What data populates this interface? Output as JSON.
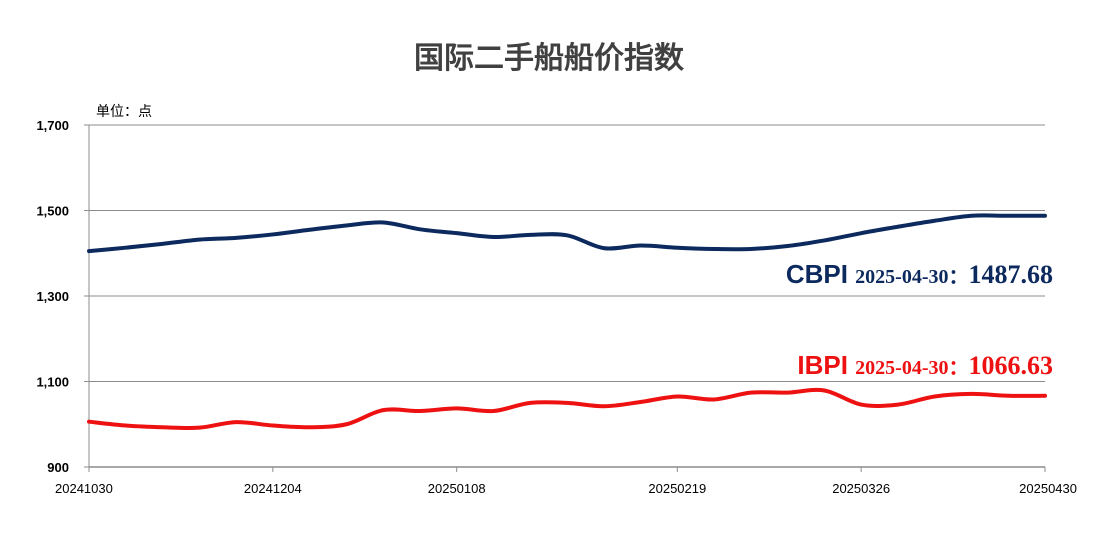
{
  "chart_data": {
    "type": "line",
    "title": "国际二手船船价指数",
    "unit_label": "单位：点",
    "ylim": [
      900,
      1700
    ],
    "yticks": [
      900,
      1100,
      1300,
      1500,
      1700
    ],
    "ytick_labels": [
      "900",
      "1,100",
      "1,300",
      "1,500",
      "1,700"
    ],
    "grid": true,
    "x": [
      "20241030",
      "20241106",
      "20241113",
      "20241120",
      "20241127",
      "20241204",
      "20241211",
      "20241218",
      "20241225",
      "20250101",
      "20250108",
      "20250115",
      "20250122",
      "20250129",
      "20250205",
      "20250212",
      "20250219",
      "20250226",
      "20250305",
      "20250312",
      "20250319",
      "20250326",
      "20250402",
      "20250409",
      "20250416",
      "20250423",
      "20250430"
    ],
    "x_tick_labels": [
      "20241030",
      "20241204",
      "20250108",
      "20250219",
      "20250326",
      "20250430"
    ],
    "series": [
      {
        "name": "CBPI",
        "color": "#0d2a5e",
        "values": [
          1405,
          1413,
          1422,
          1432,
          1436,
          1444,
          1455,
          1465,
          1472,
          1456,
          1447,
          1438,
          1443,
          1442,
          1412,
          1418,
          1413,
          1410,
          1410,
          1417,
          1430,
          1447,
          1462,
          1476,
          1487.68,
          1487.68,
          1487.68
        ],
        "label_date": "2025-04-30：",
        "label_value": "1487.68"
      },
      {
        "name": "IBPI",
        "color": "#ee1111",
        "values": [
          1006,
          997,
          993,
          992,
          1005,
          997,
          993,
          1000,
          1033,
          1031,
          1037,
          1031,
          1050,
          1050,
          1042,
          1052,
          1065,
          1058,
          1074,
          1074,
          1079,
          1046,
          1046,
          1065,
          1071,
          1066.63,
          1066.63
        ],
        "label_date": "2025-04-30：",
        "label_value": "1066.63"
      }
    ]
  }
}
